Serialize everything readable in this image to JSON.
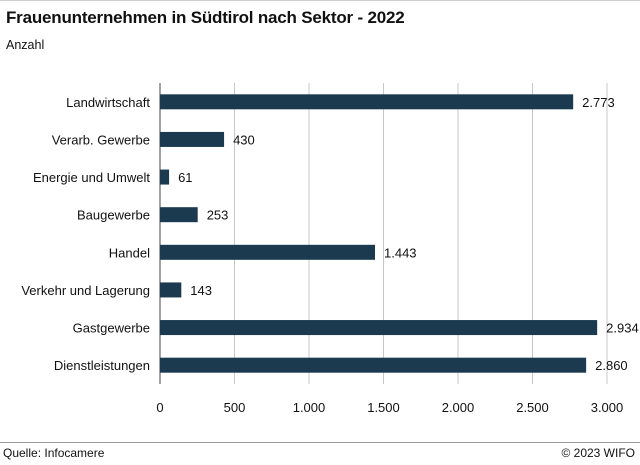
{
  "header": {
    "title": "Frauenunternehmen in Südtirol nach Sektor - 2022",
    "subtitle": "Anzahl"
  },
  "footer": {
    "source": "Quelle: Infocamere",
    "credit": "© 2023 WIFO"
  },
  "colors": {
    "bar": "#1b3a4f",
    "grid": "#c8c8c8",
    "axis": "#444444"
  },
  "chart_data": {
    "type": "bar",
    "orientation": "horizontal",
    "title": "Frauenunternehmen in Südtirol nach Sektor - 2022",
    "subtitle": "Anzahl",
    "categories": [
      "Landwirtschaft",
      "Verarb. Gewerbe",
      "Energie und Umwelt",
      "Baugewerbe",
      "Handel",
      "Verkehr und Lagerung",
      "Gastgewerbe",
      "Dienstleistungen"
    ],
    "values": [
      2773,
      430,
      61,
      253,
      1443,
      143,
      2934,
      2860
    ],
    "value_labels": [
      "2.773",
      "430",
      "61",
      "253",
      "1.443",
      "143",
      "2.934",
      "2.860"
    ],
    "xlim": [
      0,
      3000
    ],
    "xticks": [
      0,
      500,
      1000,
      1500,
      2000,
      2500,
      3000
    ],
    "xtick_labels": [
      "0",
      "500",
      "1.000",
      "1.500",
      "2.000",
      "2.500",
      "3.000"
    ],
    "grid": true,
    "legend": "none"
  }
}
